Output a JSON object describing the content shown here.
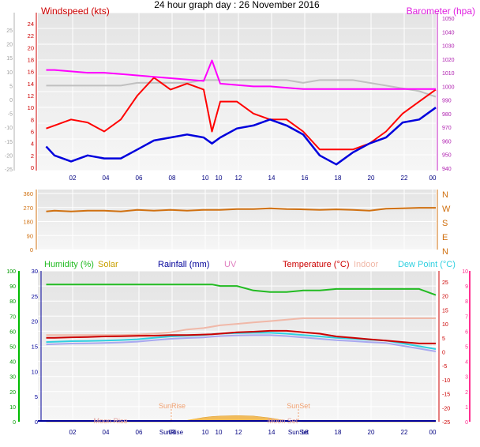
{
  "page_title": "24 hour graph day : 26 November 2016",
  "colors": {
    "windspeed": "#ff0000",
    "windspeed_dark": "#cc0000",
    "wind_avg": "#0000dd",
    "barometer": "#e020e0",
    "baro_trace": "#ff00ff",
    "wind_dir": "#d07010",
    "humidity": "#22bb22",
    "solar": "#c8a000",
    "rainfall": "#000099",
    "uv": "#e080c0",
    "temperature": "#cc0000",
    "indoor": "#f0b8a8",
    "dewpoint": "#30d0e0",
    "sun_marker": "#f0a070",
    "moon_marker": "#e0a0a0",
    "plot_bg_top": "#e6e6e6",
    "plot_bg_bottom": "#f4f4f4",
    "grid": "#ffffff",
    "axis_left": "#b0b0b0",
    "axis_right": "#c020c0",
    "axis_green": "#00bb00",
    "axis_pink": "#ff3090"
  },
  "x_ticks": [
    "02",
    "04",
    "06",
    "08",
    "10",
    "10",
    "12",
    "14",
    "16",
    "18",
    "20",
    "22",
    "00"
  ],
  "chart_data": [
    {
      "type": "line",
      "title": "Windspeed (kts)",
      "right_title": "Barometer (hpa)",
      "y_left_outer": {
        "ticks": [
          "25",
          "20",
          "15",
          "10",
          "5",
          "0",
          "-5",
          "-10",
          "-15",
          "-20",
          "-25"
        ],
        "ylim": [
          -25,
          25
        ]
      },
      "y_left": {
        "label": "Windspeed (kts)",
        "ticks": [
          "24",
          "22",
          "20",
          "18",
          "16",
          "14",
          "12",
          "10",
          "8",
          "6",
          "4",
          "2",
          "0"
        ],
        "ylim": [
          0,
          25
        ]
      },
      "y_right": {
        "label": "Barometer (hpa)",
        "ticks": [
          "1050",
          "1040",
          "1030",
          "1020",
          "1010",
          "1000",
          "990",
          "980",
          "970",
          "960",
          "950",
          "940"
        ],
        "ylim": [
          940,
          1050
        ]
      },
      "x": [
        "00:30",
        "01:00",
        "02:00",
        "03:00",
        "04:00",
        "05:00",
        "06:00",
        "07:00",
        "08:00",
        "09:00",
        "10:00",
        "10:30",
        "11:00",
        "12:00",
        "13:00",
        "14:00",
        "15:00",
        "16:00",
        "17:00",
        "18:00",
        "19:00",
        "20:00",
        "21:00",
        "22:00",
        "23:00",
        "00:00"
      ],
      "series": [
        {
          "name": "Windspeed (kts)",
          "axis": "left",
          "values": [
            6.5,
            7,
            8,
            7.5,
            6,
            8,
            12,
            15,
            13,
            14,
            13,
            6,
            11,
            11,
            9,
            8,
            8,
            6,
            3,
            3,
            3,
            4,
            6,
            9,
            11,
            13
          ]
        },
        {
          "name": "Wind average",
          "axis": "left",
          "values": [
            3.5,
            2,
            1,
            2,
            1.5,
            1.5,
            3,
            4.5,
            5,
            5.5,
            5,
            4,
            5,
            6.5,
            7,
            8,
            7,
            5.5,
            2,
            0.5,
            2.5,
            4,
            5,
            7.5,
            8,
            10
          ]
        },
        {
          "name": "Barometer (hpa)",
          "axis": "right",
          "values": [
            1012,
            1012,
            1011,
            1010,
            1010,
            1009,
            1008,
            1007,
            1006,
            1005,
            1004,
            1019,
            1002,
            1001,
            1000,
            1000,
            999,
            998,
            998,
            998,
            998,
            998,
            998,
            998,
            998,
            998
          ]
        },
        {
          "name": "Barometer trace",
          "axis": "left_outer",
          "values": [
            5,
            5,
            5,
            5,
            5,
            5,
            6,
            6,
            6,
            6,
            7,
            7,
            7,
            7,
            7,
            7,
            7,
            6,
            7,
            7,
            7,
            6,
            5,
            4,
            3,
            1
          ]
        }
      ]
    },
    {
      "type": "line",
      "title": "Wind direction",
      "y_left": {
        "ticks": [
          "360",
          "270",
          "180",
          "90",
          "0"
        ],
        "ylim": [
          0,
          360
        ]
      },
      "y_right": {
        "ticks": [
          "N",
          "W",
          "S",
          "E",
          "N"
        ]
      },
      "series": [
        {
          "name": "Wind direction",
          "values": [
            245,
            250,
            245,
            250,
            250,
            245,
            255,
            250,
            255,
            250,
            255,
            255,
            255,
            260,
            260,
            265,
            260,
            258,
            255,
            258,
            255,
            250,
            262,
            265,
            268,
            268
          ]
        }
      ]
    },
    {
      "type": "line",
      "legend": [
        "Humidity (%)",
        "Solar",
        "Rainfall (mm)",
        "UV",
        "Temperature (°C)",
        "Indoor",
        "Dew Point (°C)"
      ],
      "y_outer_left": {
        "label": "Humidity (%)",
        "ticks": [
          "100",
          "90",
          "80",
          "70",
          "60",
          "50",
          "40",
          "30",
          "20",
          "10",
          "0"
        ],
        "ylim": [
          0,
          100
        ]
      },
      "y_left": {
        "label": "Rainfall (mm)",
        "ticks": [
          "30",
          "25",
          "20",
          "15",
          "10",
          "5",
          "0"
        ],
        "ylim": [
          0,
          30
        ]
      },
      "y_right": {
        "label": "Temperature (°C)",
        "ticks": [
          "25",
          "20",
          "15",
          "10",
          "5",
          "0",
          "-5",
          "-10",
          "-15",
          "-20",
          "-25"
        ],
        "ylim": [
          -25,
          25
        ]
      },
      "y_outer_right": {
        "label": "UV",
        "ticks": [
          "10",
          "9",
          "8",
          "7",
          "6",
          "5",
          "4",
          "3",
          "2",
          "1",
          "0"
        ],
        "ylim": [
          0,
          10
        ]
      },
      "series": [
        {
          "name": "Humidity (%)",
          "axis": "outer_left",
          "values": [
            91,
            91,
            91,
            91,
            91,
            91,
            91,
            91,
            91,
            91,
            91,
            91,
            90,
            90,
            87,
            86,
            86,
            87,
            87,
            88,
            88,
            88,
            88,
            88,
            88,
            84
          ]
        },
        {
          "name": "Temperature (°C)",
          "axis": "right",
          "values": [
            5,
            5,
            5.2,
            5.3,
            5.5,
            5.6,
            5.7,
            5.8,
            6,
            6,
            6.2,
            6.3,
            6.5,
            7,
            7.2,
            7.5,
            7.5,
            7,
            6.5,
            5.5,
            5,
            4.5,
            4,
            3.5,
            3,
            3
          ]
        },
        {
          "name": "Indoor",
          "axis": "right",
          "values": [
            6,
            6,
            6,
            6,
            6,
            6,
            6.2,
            6.5,
            7,
            8,
            8.5,
            9,
            9.5,
            10,
            10.5,
            11,
            11.5,
            12,
            12,
            12,
            12,
            12,
            12,
            12,
            12,
            12
          ]
        },
        {
          "name": "Dew Point (°C)",
          "axis": "right",
          "values": [
            3.5,
            3.6,
            3.8,
            3.9,
            4,
            4.2,
            4.5,
            5,
            5.5,
            5.8,
            6,
            6.3,
            6.5,
            6.7,
            6.8,
            6.8,
            6.5,
            6,
            5.5,
            5,
            4.7,
            4.3,
            4,
            3,
            2,
            1
          ]
        },
        {
          "name": "Solar",
          "axis": "outer_left",
          "values": [
            0,
            0,
            0,
            0,
            0,
            0,
            0,
            0,
            0,
            0.3,
            0.9,
            1.1,
            1.2,
            1.3,
            1.2,
            0.8,
            0.2,
            0,
            0,
            0,
            0,
            0,
            0,
            0,
            0,
            0
          ]
        }
      ],
      "annotations": [
        "SunRise",
        "SunSet",
        "Moon Rise",
        "Moon Set",
        "SunRise",
        "SunSet"
      ]
    }
  ]
}
